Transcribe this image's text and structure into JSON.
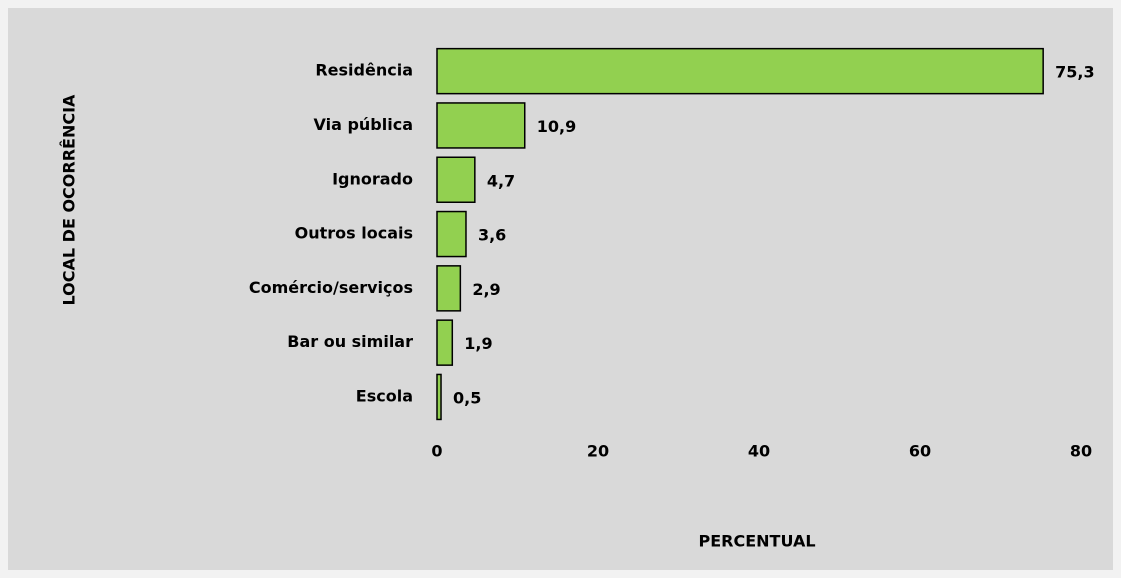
{
  "chart_data": {
    "type": "bar",
    "orientation": "horizontal",
    "categories": [
      "Residência",
      "Via pública",
      "Ignorado",
      "Outros locais",
      "Comércio/serviços",
      "Bar ou similar",
      "Escola"
    ],
    "values": [
      75.3,
      10.9,
      4.7,
      3.6,
      2.9,
      1.9,
      0.5
    ],
    "value_labels": [
      "75,3",
      "10,9",
      "4,7",
      "3,6",
      "2,9",
      "1,9",
      "0,5"
    ],
    "color": "#92d050",
    "xlim": [
      0,
      80
    ],
    "xticks": [
      0,
      20,
      40,
      60,
      80
    ],
    "x_label": "PERCENTUAL",
    "y_label": "LOCAL DE OCORRÊNCIA",
    "grid": false
  }
}
